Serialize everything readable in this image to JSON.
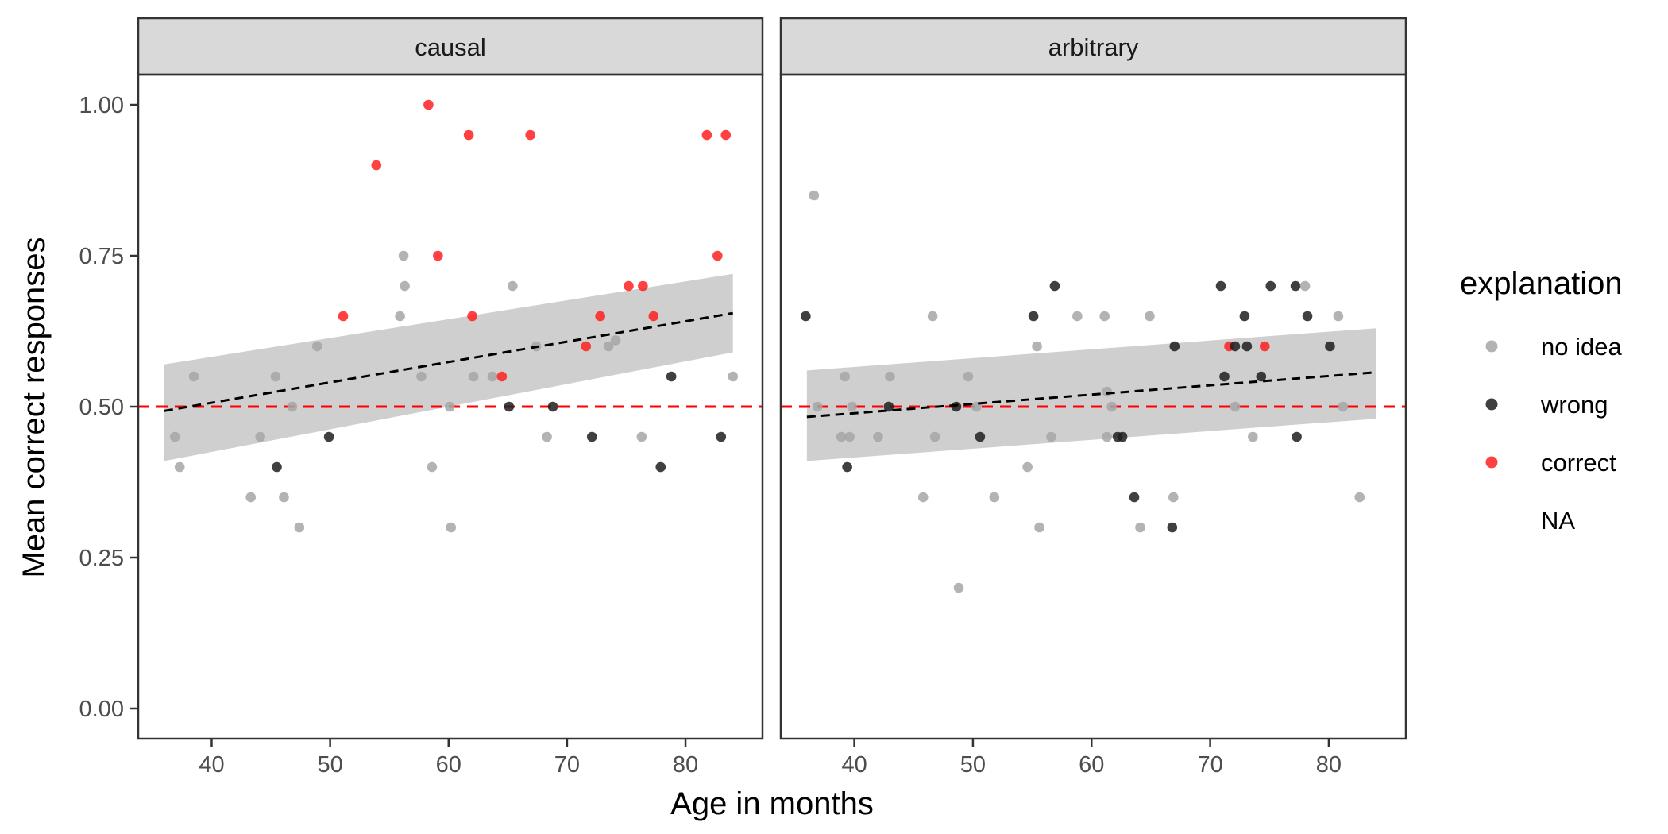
{
  "chart_data": {
    "type": "scatter",
    "xlabel": "Age in months",
    "ylabel": "Mean correct responses",
    "xlim": [
      33.8,
      86.5
    ],
    "ylim": [
      -0.05,
      1.05
    ],
    "x_ticks": [
      40,
      50,
      60,
      70,
      80
    ],
    "y_ticks": [
      0.0,
      0.25,
      0.5,
      0.75,
      1.0
    ],
    "y_tick_labels": [
      "0.00",
      "0.25",
      "0.50",
      "0.75",
      "1.00"
    ],
    "reference_line": {
      "y": 0.5,
      "style": "dashed",
      "color": "#ff0000"
    },
    "grid": false,
    "legend": {
      "title": "explanation",
      "position": "right",
      "entries": [
        {
          "label": "no idea",
          "color": "#a6a6a6"
        },
        {
          "label": "wrong",
          "color": "#1f1f1f"
        },
        {
          "label": "correct",
          "color": "#ff2020"
        },
        {
          "label": "NA",
          "color": "none"
        }
      ]
    },
    "series_colors": {
      "no idea": "#a6a6a6",
      "wrong": "#1f1f1f",
      "correct": "#ff2020"
    },
    "panels": [
      {
        "label": "causal",
        "trend": {
          "x": [
            36,
            84
          ],
          "y": [
            0.493,
            0.655
          ],
          "ci_low": [
            0.41,
            0.59
          ],
          "ci_high": [
            0.57,
            0.72
          ]
        },
        "points": [
          {
            "x": 36.9,
            "y": 0.45,
            "group": "no idea"
          },
          {
            "x": 37.3,
            "y": 0.4,
            "group": "no idea"
          },
          {
            "x": 38.5,
            "y": 0.55,
            "group": "no idea"
          },
          {
            "x": 43.3,
            "y": 0.35,
            "group": "no idea"
          },
          {
            "x": 44.1,
            "y": 0.45,
            "group": "no idea"
          },
          {
            "x": 45.4,
            "y": 0.55,
            "group": "no idea"
          },
          {
            "x": 45.5,
            "y": 0.4,
            "group": "wrong"
          },
          {
            "x": 46.1,
            "y": 0.35,
            "group": "no idea"
          },
          {
            "x": 46.8,
            "y": 0.5,
            "group": "no idea"
          },
          {
            "x": 47.4,
            "y": 0.3,
            "group": "no idea"
          },
          {
            "x": 48.9,
            "y": 0.6,
            "group": "no idea"
          },
          {
            "x": 49.9,
            "y": 0.45,
            "group": "wrong"
          },
          {
            "x": 51.1,
            "y": 0.65,
            "group": "correct"
          },
          {
            "x": 53.9,
            "y": 0.9,
            "group": "correct"
          },
          {
            "x": 55.9,
            "y": 0.65,
            "group": "no idea"
          },
          {
            "x": 56.2,
            "y": 0.75,
            "group": "no idea"
          },
          {
            "x": 56.3,
            "y": 0.7,
            "group": "no idea"
          },
          {
            "x": 57.7,
            "y": 0.55,
            "group": "no idea"
          },
          {
            "x": 58.3,
            "y": 1.0,
            "group": "correct"
          },
          {
            "x": 58.6,
            "y": 0.4,
            "group": "no idea"
          },
          {
            "x": 59.1,
            "y": 0.75,
            "group": "correct"
          },
          {
            "x": 60.1,
            "y": 0.5,
            "group": "no idea"
          },
          {
            "x": 60.2,
            "y": 0.3,
            "group": "no idea"
          },
          {
            "x": 61.7,
            "y": 0.95,
            "group": "correct"
          },
          {
            "x": 62.0,
            "y": 0.65,
            "group": "correct"
          },
          {
            "x": 62.1,
            "y": 0.55,
            "group": "no idea"
          },
          {
            "x": 63.7,
            "y": 0.55,
            "group": "no idea"
          },
          {
            "x": 64.5,
            "y": 0.55,
            "group": "correct"
          },
          {
            "x": 65.1,
            "y": 0.5,
            "group": "wrong"
          },
          {
            "x": 65.4,
            "y": 0.7,
            "group": "no idea"
          },
          {
            "x": 66.9,
            "y": 0.95,
            "group": "correct"
          },
          {
            "x": 67.4,
            "y": 0.6,
            "group": "no idea"
          },
          {
            "x": 68.3,
            "y": 0.45,
            "group": "no idea"
          },
          {
            "x": 68.8,
            "y": 0.5,
            "group": "wrong"
          },
          {
            "x": 71.6,
            "y": 0.6,
            "group": "correct"
          },
          {
            "x": 72.1,
            "y": 0.45,
            "group": "wrong"
          },
          {
            "x": 72.8,
            "y": 0.65,
            "group": "correct"
          },
          {
            "x": 73.5,
            "y": 0.6,
            "group": "no idea"
          },
          {
            "x": 74.1,
            "y": 0.61,
            "group": "no idea"
          },
          {
            "x": 75.2,
            "y": 0.7,
            "group": "correct"
          },
          {
            "x": 76.4,
            "y": 0.7,
            "group": "correct"
          },
          {
            "x": 76.3,
            "y": 0.45,
            "group": "no idea"
          },
          {
            "x": 77.3,
            "y": 0.65,
            "group": "correct"
          },
          {
            "x": 77.9,
            "y": 0.4,
            "group": "wrong"
          },
          {
            "x": 78.8,
            "y": 0.55,
            "group": "wrong"
          },
          {
            "x": 81.8,
            "y": 0.95,
            "group": "correct"
          },
          {
            "x": 82.7,
            "y": 0.75,
            "group": "correct"
          },
          {
            "x": 83.0,
            "y": 0.45,
            "group": "wrong"
          },
          {
            "x": 83.4,
            "y": 0.95,
            "group": "correct"
          },
          {
            "x": 84.0,
            "y": 0.55,
            "group": "no idea"
          }
        ]
      },
      {
        "label": "arbitrary",
        "trend": {
          "x": [
            36,
            84
          ],
          "y": [
            0.483,
            0.557
          ],
          "ci_low": [
            0.41,
            0.48
          ],
          "ci_high": [
            0.56,
            0.63
          ]
        },
        "points": [
          {
            "x": 35.9,
            "y": 0.65,
            "group": "wrong"
          },
          {
            "x": 36.6,
            "y": 0.85,
            "group": "no idea"
          },
          {
            "x": 36.9,
            "y": 0.5,
            "group": "no idea"
          },
          {
            "x": 38.9,
            "y": 0.45,
            "group": "no idea"
          },
          {
            "x": 39.2,
            "y": 0.55,
            "group": "no idea"
          },
          {
            "x": 39.4,
            "y": 0.4,
            "group": "wrong"
          },
          {
            "x": 39.6,
            "y": 0.45,
            "group": "no idea"
          },
          {
            "x": 39.8,
            "y": 0.5,
            "group": "no idea"
          },
          {
            "x": 42.0,
            "y": 0.45,
            "group": "no idea"
          },
          {
            "x": 42.9,
            "y": 0.5,
            "group": "wrong"
          },
          {
            "x": 43.0,
            "y": 0.55,
            "group": "no idea"
          },
          {
            "x": 45.8,
            "y": 0.35,
            "group": "no idea"
          },
          {
            "x": 46.6,
            "y": 0.65,
            "group": "no idea"
          },
          {
            "x": 46.8,
            "y": 0.45,
            "group": "no idea"
          },
          {
            "x": 48.6,
            "y": 0.5,
            "group": "wrong"
          },
          {
            "x": 48.8,
            "y": 0.2,
            "group": "no idea"
          },
          {
            "x": 49.6,
            "y": 0.55,
            "group": "no idea"
          },
          {
            "x": 50.3,
            "y": 0.5,
            "group": "no idea"
          },
          {
            "x": 50.6,
            "y": 0.45,
            "group": "wrong"
          },
          {
            "x": 51.8,
            "y": 0.35,
            "group": "no idea"
          },
          {
            "x": 54.6,
            "y": 0.4,
            "group": "no idea"
          },
          {
            "x": 55.1,
            "y": 0.65,
            "group": "wrong"
          },
          {
            "x": 55.4,
            "y": 0.6,
            "group": "no idea"
          },
          {
            "x": 55.6,
            "y": 0.3,
            "group": "no idea"
          },
          {
            "x": 56.6,
            "y": 0.45,
            "group": "no idea"
          },
          {
            "x": 56.9,
            "y": 0.7,
            "group": "wrong"
          },
          {
            "x": 58.8,
            "y": 0.65,
            "group": "no idea"
          },
          {
            "x": 61.1,
            "y": 0.65,
            "group": "no idea"
          },
          {
            "x": 61.3,
            "y": 0.525,
            "group": "no idea"
          },
          {
            "x": 61.3,
            "y": 0.45,
            "group": "no idea"
          },
          {
            "x": 61.7,
            "y": 0.5,
            "group": "no idea"
          },
          {
            "x": 62.2,
            "y": 0.45,
            "group": "wrong"
          },
          {
            "x": 62.6,
            "y": 0.45,
            "group": "wrong"
          },
          {
            "x": 63.6,
            "y": 0.35,
            "group": "wrong"
          },
          {
            "x": 64.1,
            "y": 0.3,
            "group": "no idea"
          },
          {
            "x": 64.9,
            "y": 0.65,
            "group": "no idea"
          },
          {
            "x": 66.8,
            "y": 0.3,
            "group": "wrong"
          },
          {
            "x": 66.9,
            "y": 0.35,
            "group": "no idea"
          },
          {
            "x": 67.0,
            "y": 0.6,
            "group": "wrong"
          },
          {
            "x": 70.9,
            "y": 0.7,
            "group": "wrong"
          },
          {
            "x": 71.2,
            "y": 0.55,
            "group": "wrong"
          },
          {
            "x": 71.6,
            "y": 0.6,
            "group": "correct"
          },
          {
            "x": 72.1,
            "y": 0.6,
            "group": "wrong"
          },
          {
            "x": 72.1,
            "y": 0.5,
            "group": "no idea"
          },
          {
            "x": 72.9,
            "y": 0.65,
            "group": "wrong"
          },
          {
            "x": 73.1,
            "y": 0.6,
            "group": "wrong"
          },
          {
            "x": 73.6,
            "y": 0.45,
            "group": "no idea"
          },
          {
            "x": 74.3,
            "y": 0.55,
            "group": "wrong"
          },
          {
            "x": 74.6,
            "y": 0.6,
            "group": "correct"
          },
          {
            "x": 75.1,
            "y": 0.7,
            "group": "wrong"
          },
          {
            "x": 77.2,
            "y": 0.7,
            "group": "wrong"
          },
          {
            "x": 77.3,
            "y": 0.45,
            "group": "wrong"
          },
          {
            "x": 78.0,
            "y": 0.7,
            "group": "no idea"
          },
          {
            "x": 78.2,
            "y": 0.65,
            "group": "wrong"
          },
          {
            "x": 80.1,
            "y": 0.6,
            "group": "wrong"
          },
          {
            "x": 80.8,
            "y": 0.65,
            "group": "no idea"
          },
          {
            "x": 81.2,
            "y": 0.5,
            "group": "no idea"
          },
          {
            "x": 82.6,
            "y": 0.35,
            "group": "no idea"
          }
        ]
      }
    ]
  }
}
